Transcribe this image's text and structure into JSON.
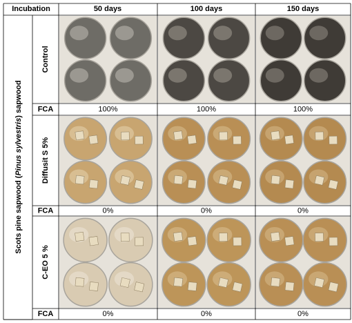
{
  "header": [
    "Incubation",
    "50 days",
    "100 days",
    "150 days"
  ],
  "side_label": [
    "Scots pine sapwood (",
    "Pinus sylvestris",
    ") sapwood"
  ],
  "groups": [
    {
      "label": "Control",
      "fca_label": "FCA",
      "fca": [
        "100%",
        "100%",
        "100%"
      ]
    },
    {
      "label": "Diffusit S 5%",
      "fca_label": "FCA",
      "fca": [
        "0%",
        "0%",
        "0%"
      ]
    },
    {
      "label": "C-EO 5 %",
      "fca_label": "FCA",
      "fca": [
        "0%",
        "0%",
        "0%"
      ]
    }
  ]
}
